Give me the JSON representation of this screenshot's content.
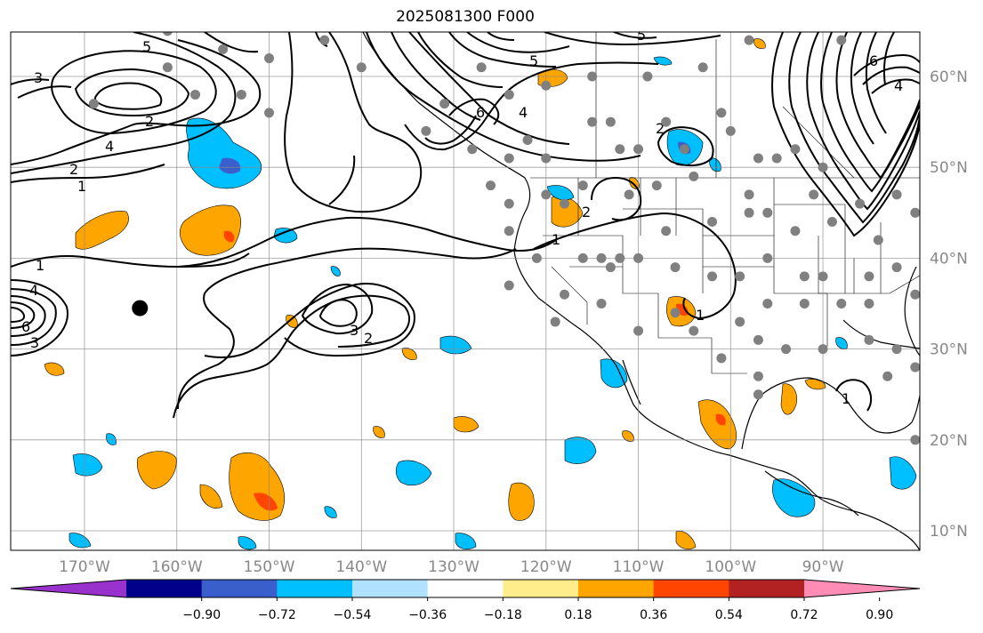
{
  "title": "2025081300 F000",
  "map": {
    "lon_labels": [
      "170°W",
      "160°W",
      "150°W",
      "140°W",
      "130°W",
      "120°W",
      "110°W",
      "100°W",
      "90°W"
    ],
    "lat_labels": [
      "60°N",
      "50°N",
      "40°N",
      "30°N",
      "20°N",
      "10°N"
    ],
    "contour_labels": [
      "3",
      "5",
      "4",
      "2",
      "1",
      "1",
      "4",
      "6",
      "3",
      "5",
      "4",
      "6",
      "5",
      "2",
      "2",
      "1",
      "3",
      "2",
      "1",
      "6",
      "4",
      "2",
      "1"
    ],
    "station_marker": {
      "lon": -164,
      "lat": 34.5
    }
  },
  "colorbar": {
    "tick_labels": [
      "−0.90",
      "−0.72",
      "−0.54",
      "−0.36",
      "−0.18",
      "0.18",
      "0.36",
      "0.54",
      "0.72",
      "0.90"
    ],
    "colors": [
      "#9932cc",
      "#00008b",
      "#3a5fcd",
      "#00bfff",
      "#b0e2ff",
      "#ffffff",
      "#ffec8b",
      "#ffa500",
      "#ff4500",
      "#b22222",
      "#ff8cb4"
    ]
  }
}
